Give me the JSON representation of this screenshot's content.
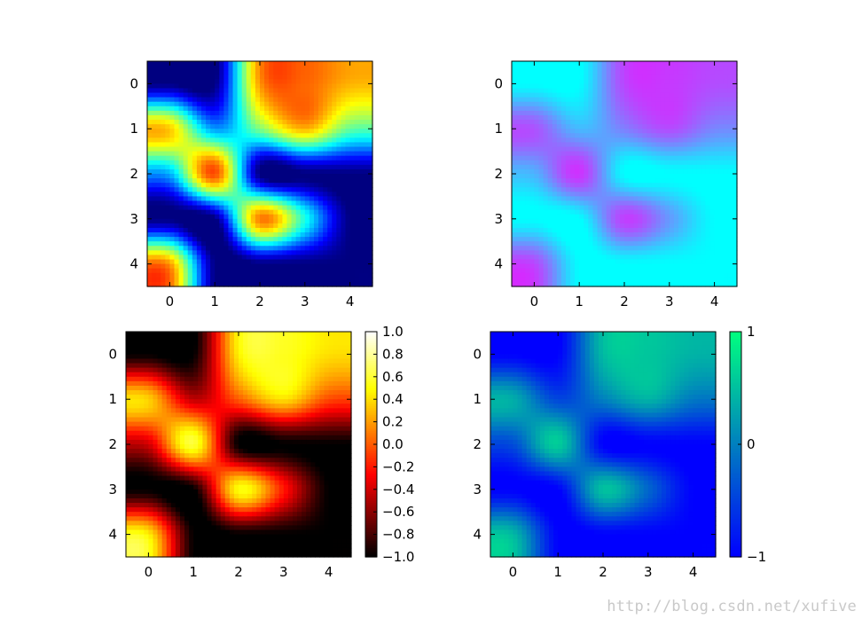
{
  "chart_data": [
    {
      "type": "heatmap",
      "colormap": "jet",
      "vmin": -1,
      "vmax": 1,
      "x_ticks": [
        "0",
        "1",
        "2",
        "3",
        "4"
      ],
      "y_ticks": [
        "0",
        "1",
        "2",
        "3",
        "4"
      ],
      "xlim": [
        -0.5,
        4.5
      ],
      "ylim": [
        4.5,
        -0.5
      ],
      "values": [
        [
          -1.0,
          -1.0,
          0.45,
          0.55,
          0.4
        ],
        [
          0.35,
          -0.45,
          0.0,
          0.4,
          -0.05
        ],
        [
          -0.4,
          0.6,
          -1.0,
          -1.0,
          -1.0
        ],
        [
          -1.0,
          -1.0,
          0.5,
          -0.2,
          -1.0
        ],
        [
          0.45,
          -1.0,
          -1.0,
          -1.0,
          -1.0
        ]
      ],
      "colorbar": false
    },
    {
      "type": "heatmap",
      "colormap": "cool",
      "vmin": -1,
      "vmax": 1,
      "x_ticks": [
        "0",
        "1",
        "2",
        "3",
        "4"
      ],
      "y_ticks": [
        "0",
        "1",
        "2",
        "3",
        "4"
      ],
      "xlim": [
        -0.5,
        4.5
      ],
      "ylim": [
        4.5,
        -0.5
      ],
      "values": [
        [
          -1.0,
          -1.0,
          0.45,
          0.55,
          0.4
        ],
        [
          0.35,
          -0.45,
          0.0,
          0.4,
          -0.05
        ],
        [
          -0.4,
          0.6,
          -1.0,
          -1.0,
          -1.0
        ],
        [
          -1.0,
          -1.0,
          0.5,
          -0.2,
          -1.0
        ],
        [
          0.45,
          -1.0,
          -1.0,
          -1.0,
          -1.0
        ]
      ],
      "colorbar": false
    },
    {
      "type": "heatmap",
      "colormap": "hot",
      "vmin": -1,
      "vmax": 1,
      "x_ticks": [
        "0",
        "1",
        "2",
        "3",
        "4"
      ],
      "y_ticks": [
        "0",
        "1",
        "2",
        "3",
        "4"
      ],
      "xlim": [
        -0.5,
        4.5
      ],
      "ylim": [
        4.5,
        -0.5
      ],
      "values": [
        [
          -1.0,
          -1.0,
          0.45,
          0.55,
          0.4
        ],
        [
          0.35,
          -0.45,
          0.0,
          0.4,
          -0.05
        ],
        [
          -0.4,
          0.6,
          -1.0,
          -1.0,
          -1.0
        ],
        [
          -1.0,
          -1.0,
          0.5,
          -0.2,
          -1.0
        ],
        [
          0.45,
          -1.0,
          -1.0,
          -1.0,
          -1.0
        ]
      ],
      "colorbar": true,
      "colorbar_ticks": [
        "1.0",
        "0.8",
        "0.6",
        "0.4",
        "0.2",
        "0.0",
        "−0.2",
        "−0.4",
        "−0.6",
        "−0.8",
        "−1.0"
      ],
      "colorbar_tick_values": [
        1.0,
        0.8,
        0.6,
        0.4,
        0.2,
        0.0,
        -0.2,
        -0.4,
        -0.6,
        -0.8,
        -1.0
      ]
    },
    {
      "type": "heatmap",
      "colormap": "winter",
      "vmin": -1,
      "vmax": 1,
      "x_ticks": [
        "0",
        "1",
        "2",
        "3",
        "4"
      ],
      "y_ticks": [
        "0",
        "1",
        "2",
        "3",
        "4"
      ],
      "xlim": [
        -0.5,
        4.5
      ],
      "ylim": [
        4.5,
        -0.5
      ],
      "values": [
        [
          -1.0,
          -1.0,
          0.45,
          0.55,
          0.4
        ],
        [
          0.35,
          -0.45,
          0.0,
          0.4,
          -0.05
        ],
        [
          -0.4,
          0.6,
          -1.0,
          -1.0,
          -1.0
        ],
        [
          -1.0,
          -1.0,
          0.5,
          -0.2,
          -1.0
        ],
        [
          0.45,
          -1.0,
          -1.0,
          -1.0,
          -1.0
        ]
      ],
      "colorbar": true,
      "colorbar_ticks": [
        "1",
        "0",
        "−1"
      ],
      "colorbar_tick_values": [
        1,
        0,
        -1
      ]
    }
  ],
  "watermark": "http://blog.csdn.net/xufive"
}
